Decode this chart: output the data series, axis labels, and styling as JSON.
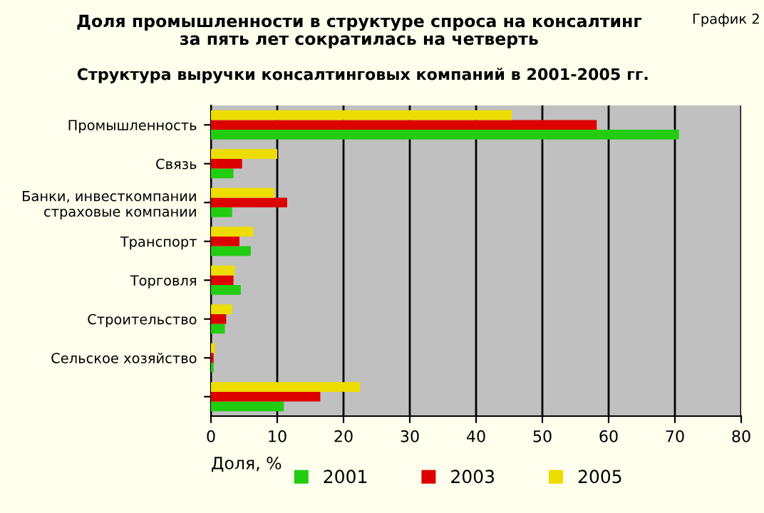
{
  "chart_data": {
    "type": "bar",
    "orientation": "horizontal",
    "title": "Доля промышленности в структуре спроса на консалтинг\nза пять лет сократилась на четверть",
    "subtitle": "Структура выручки консалтинговых компаний в 2001-2005 гг.",
    "annotations": [
      "График 2"
    ],
    "xlabel": "Доля, %",
    "categories": [
      "Промышленность",
      "Связь",
      "Банки, инвесткомпании\nстраховые компании",
      "Транспорт",
      "Торговля",
      "Строительство",
      "Сельское хозяйство",
      null
    ],
    "series": [
      {
        "name": "2001",
        "color": "#22cc11",
        "values": [
          70.6,
          3.4,
          3.2,
          6.0,
          4.5,
          2.1,
          0.4,
          11.0
        ]
      },
      {
        "name": "2003",
        "color": "#dd0000",
        "values": [
          58.2,
          4.7,
          11.5,
          4.3,
          3.4,
          2.3,
          0.4,
          16.5
        ]
      },
      {
        "name": "2005",
        "color": "#eedd00",
        "values": [
          45.4,
          10.0,
          9.6,
          6.4,
          3.6,
          3.2,
          0.6,
          22.5
        ]
      }
    ],
    "xlim": [
      0,
      80
    ],
    "xticks": [
      0,
      10,
      20,
      30,
      40,
      50,
      60,
      70,
      80
    ],
    "grid": "x",
    "legend": "bottom"
  }
}
